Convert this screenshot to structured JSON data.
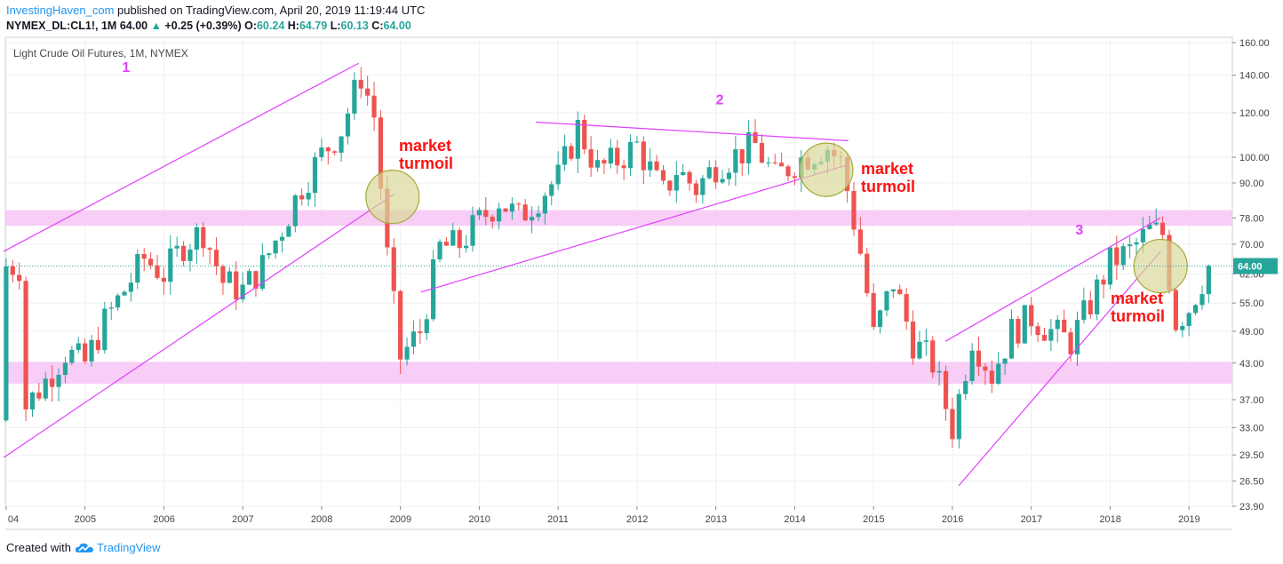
{
  "header": {
    "publisher": "InvestingHaven_com",
    "published_text": "published on TradingView.com, April 20, 2019 11:19:44 UTC",
    "symbol": "NYMEX_DL:CL1!, 1M",
    "last_price": "64.00",
    "change": "+0.25 (+0.39%)",
    "open_label": "O:",
    "open": "60.24",
    "high_label": "H:",
    "high": "64.79",
    "low_label": "L:",
    "low": "60.13",
    "close_label": "C:",
    "close": "64.00"
  },
  "footer": {
    "created_with": "Created with",
    "brand": "TradingView"
  },
  "colors": {
    "up": "#26a69a",
    "down": "#ef5350",
    "trend": "#e040fb",
    "zone": "#f7c8f5",
    "circle_fill": "#d9d89a",
    "circle_stroke": "#a8a83a",
    "annotation": "#ff1111",
    "label": "#e040fb"
  },
  "chart_data": {
    "type": "candlestick",
    "title": "Light Crude Oil Futures, 1M, NYMEX",
    "y_scale": "log",
    "ylim": [
      23.9,
      160
    ],
    "y_ticks": [
      "23.90",
      "26.50",
      "29.50",
      "33.00",
      "37.00",
      "43.00",
      "49.00",
      "55.00",
      "62.00",
      "70.00",
      "78.00",
      "90.00",
      "100.00",
      "120.00",
      "140.00",
      "160.00"
    ],
    "x_ticks": [
      "04",
      "2005",
      "2006",
      "2007",
      "2008",
      "2009",
      "2010",
      "2011",
      "2012",
      "2013",
      "2014",
      "2015",
      "2016",
      "2017",
      "2018",
      "2019"
    ],
    "price_label": "64.00",
    "monthly_closes": [
      [
        2004.25,
        36
      ],
      [
        2004.5,
        40
      ],
      [
        2004.75,
        45
      ],
      [
        2005,
        43
      ],
      [
        2005.25,
        51
      ],
      [
        2005.5,
        58
      ],
      [
        2005.75,
        66
      ],
      [
        2006,
        62
      ],
      [
        2006.25,
        70
      ],
      [
        2006.5,
        74
      ],
      [
        2006.75,
        60
      ],
      [
        2007,
        58
      ],
      [
        2007.25,
        64
      ],
      [
        2007.5,
        75
      ],
      [
        2007.75,
        89
      ],
      [
        2008,
        101
      ],
      [
        2008.25,
        112
      ],
      [
        2008.5,
        140
      ],
      [
        2008.67,
        118
      ],
      [
        2008.83,
        67
      ],
      [
        2009,
        44
      ],
      [
        2009.25,
        49
      ],
      [
        2009.5,
        69
      ],
      [
        2009.75,
        70
      ],
      [
        2010,
        77
      ],
      [
        2010.25,
        84
      ],
      [
        2010.5,
        78
      ],
      [
        2010.75,
        85
      ],
      [
        2011,
        92
      ],
      [
        2011.25,
        113
      ],
      [
        2011.5,
        95
      ],
      [
        2011.75,
        99
      ],
      [
        2012,
        105
      ],
      [
        2012.33,
        86
      ],
      [
        2012.5,
        95
      ],
      [
        2012.75,
        88
      ],
      [
        2013,
        97
      ],
      [
        2013.5,
        105
      ],
      [
        2013.75,
        92
      ],
      [
        2014,
        98
      ],
      [
        2014.4,
        105
      ],
      [
        2014.6,
        97
      ],
      [
        2014.85,
        66
      ],
      [
        2015,
        48
      ],
      [
        2015.25,
        60
      ],
      [
        2015.5,
        47
      ],
      [
        2015.75,
        43
      ],
      [
        2016,
        33
      ],
      [
        2016.25,
        48
      ],
      [
        2016.5,
        41
      ],
      [
        2016.75,
        49
      ],
      [
        2017,
        52
      ],
      [
        2017.25,
        49
      ],
      [
        2017.5,
        47
      ],
      [
        2017.75,
        55
      ],
      [
        2018,
        65
      ],
      [
        2018.25,
        68
      ],
      [
        2018.5,
        74
      ],
      [
        2018.67,
        73
      ],
      [
        2018.83,
        51
      ],
      [
        2019,
        54
      ],
      [
        2019.25,
        64
      ]
    ],
    "trendlines": [
      {
        "label": "1",
        "from": [
          2003.97,
          68
        ],
        "to": [
          2008.47,
          147
        ]
      },
      {
        "label": "1",
        "from": [
          2003.97,
          29.2
        ],
        "to": [
          2008.92,
          86
        ]
      },
      {
        "label": "2",
        "from": [
          2010.72,
          115.5
        ],
        "to": [
          2014.68,
          107
        ]
      },
      {
        "label": "2",
        "from": [
          2009.26,
          57.5
        ],
        "to": [
          2014.68,
          97
        ]
      },
      {
        "label": "3",
        "from": [
          2015.91,
          47
        ],
        "to": [
          2018.64,
          78
        ]
      },
      {
        "label": "3",
        "from": [
          2016.08,
          26
        ],
        "to": [
          2018.64,
          68
        ]
      }
    ],
    "support_zones": [
      [
        75.5,
        80.5
      ],
      [
        39.5,
        43.2
      ]
    ],
    "pattern_labels": [
      "1",
      "2",
      "3"
    ],
    "annotations": [
      "market turmoil",
      "market turmoil",
      "market turmoil"
    ],
    "turmoil_circles": [
      [
        2008.9,
        85
      ],
      [
        2014.4,
        95
      ],
      [
        2018.64,
        64
      ]
    ]
  }
}
